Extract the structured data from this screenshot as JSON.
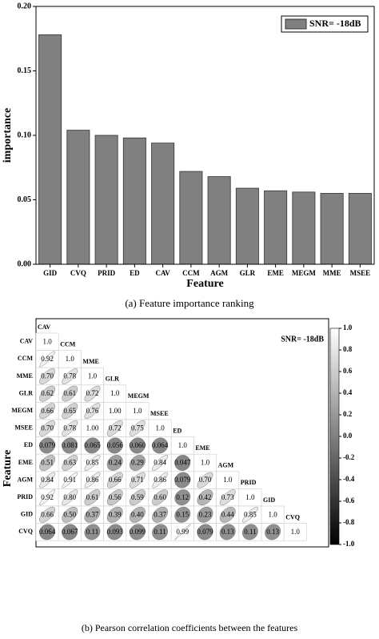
{
  "chart_data": [
    {
      "type": "bar",
      "legend": "SNR= -18dB",
      "legend_position": "upper right",
      "ylabel": "importance",
      "xlabel": "Feature",
      "caption": "(a)  Feature importance ranking",
      "categories": [
        "GID",
        "CVQ",
        "PRID",
        "ED",
        "CAV",
        "CCM",
        "AGM",
        "GLR",
        "EME",
        "MEGM",
        "MME",
        "MSEE"
      ],
      "values": [
        0.178,
        0.104,
        0.1,
        0.098,
        0.094,
        0.072,
        0.068,
        0.059,
        0.057,
        0.056,
        0.055,
        0.055
      ],
      "color": "#808080",
      "ylim": [
        0,
        0.2
      ],
      "yticks": [
        {
          "value": 0,
          "label": "0.00"
        },
        {
          "value": 0.05,
          "label": "0.05"
        },
        {
          "value": 0.1,
          "label": "0.10"
        },
        {
          "value": 0.15,
          "label": "0.15"
        },
        {
          "value": 0.2,
          "label": "0.20"
        }
      ]
    },
    {
      "type": "heatmap",
      "title": "SNR= -18dB",
      "ylabel": "Feature",
      "caption": "(b)  Pearson correlation coefficients between the features",
      "categories": [
        "CAV",
        "CCM",
        "MME",
        "GLR",
        "MEGM",
        "MSEE",
        "ED",
        "EME",
        "AGM",
        "PRID",
        "GID",
        "CVQ"
      ],
      "values": [
        [
          1.0
        ],
        [
          0.92,
          1.0
        ],
        [
          0.7,
          0.78,
          1.0
        ],
        [
          0.62,
          0.61,
          0.72,
          1.0
        ],
        [
          0.66,
          0.65,
          0.76,
          1.0,
          1.0
        ],
        [
          0.7,
          0.78,
          1.0,
          0.72,
          0.75,
          1.0
        ],
        [
          0.079,
          0.081,
          0.065,
          0.056,
          0.06,
          0.064,
          1.0
        ],
        [
          0.51,
          0.63,
          0.85,
          0.24,
          0.29,
          0.84,
          0.047,
          1.0
        ],
        [
          0.84,
          0.91,
          0.86,
          0.66,
          0.71,
          0.86,
          0.079,
          0.7,
          1.0
        ],
        [
          0.92,
          0.8,
          0.61,
          0.56,
          0.59,
          0.6,
          0.12,
          0.42,
          0.73,
          1.0
        ],
        [
          0.66,
          0.5,
          0.37,
          0.39,
          0.4,
          0.37,
          0.15,
          0.23,
          0.44,
          0.85,
          1.0
        ],
        [
          0.064,
          0.067,
          0.11,
          0.093,
          0.099,
          0.11,
          0.99,
          0.079,
          0.13,
          0.11,
          0.13,
          1.0
        ]
      ],
      "value_labels": [
        [
          "1.0"
        ],
        [
          "0.92",
          "1.0"
        ],
        [
          "0.70",
          "0.78",
          "1.0"
        ],
        [
          "0.62",
          "0.61",
          "0.72",
          "1.0"
        ],
        [
          "0.66",
          "0.65",
          "0.76",
          "1.00",
          "1.0"
        ],
        [
          "0.70",
          "0.78",
          "1.00",
          "0.72",
          "0.75",
          "1.0"
        ],
        [
          "0.079",
          "0.081",
          "0.065",
          "0.056",
          "0.060",
          "0.064",
          "1.0"
        ],
        [
          "0.51",
          "0.63",
          "0.85",
          "0.24",
          "0.29",
          "0.84",
          "0.047",
          "1.0"
        ],
        [
          "0.84",
          "0.91",
          "0.86",
          "0.66",
          "0.71",
          "0.86",
          "0.079",
          "0.70",
          "1.0"
        ],
        [
          "0.92",
          "0.80",
          "0.61",
          "0.56",
          "0.59",
          "0.60",
          "0.12",
          "0.42",
          "0.73",
          "1.0"
        ],
        [
          "0.66",
          "0.50",
          "0.37",
          "0.39",
          "0.40",
          "0.37",
          "0.15",
          "0.23",
          "0.44",
          "0.85",
          "1.0"
        ],
        [
          "0.064",
          "0.067",
          "0.11",
          "0.093",
          "0.099",
          "0.11",
          "0.99",
          "0.079",
          "0.13",
          "0.11",
          "0.13",
          "1.0"
        ]
      ],
      "colormap": [
        "#000000",
        "#ffffff"
      ],
      "clim": [
        -1,
        1
      ],
      "cticks": [
        {
          "value": 1,
          "label": "1.0"
        },
        {
          "value": 0.8,
          "label": "0.8"
        },
        {
          "value": 0.6,
          "label": "0.6"
        },
        {
          "value": 0.4,
          "label": "0.4"
        },
        {
          "value": 0.2,
          "label": "0.2"
        },
        {
          "value": 0,
          "label": "0.0"
        },
        {
          "value": -0.2,
          "label": "-0.2"
        },
        {
          "value": -0.4,
          "label": "-0.4"
        },
        {
          "value": -0.6,
          "label": "-0.6"
        },
        {
          "value": -0.8,
          "label": "-0.8"
        },
        {
          "value": -1,
          "label": "-1.0"
        }
      ]
    }
  ]
}
